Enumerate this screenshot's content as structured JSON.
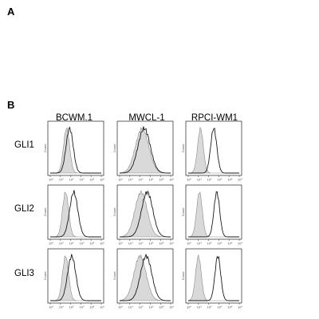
{
  "figure": {
    "panel_a_label": "A",
    "panel_b_label": "B",
    "columns": [
      "BCWM.1",
      "MWCL-1",
      "RPCI-WM1"
    ],
    "rows": [
      "GLI1",
      "GLI2",
      "GLI3"
    ],
    "y_axis_label": "Count",
    "x_tick_labels": [
      "10⁰",
      "10¹",
      "10²",
      "10³",
      "10⁴",
      "10⁵"
    ]
  },
  "panels": [
    {
      "row": "GLI1",
      "col": "BCWM.1",
      "shaded": {
        "peak": 1.6,
        "width": 0.3
      },
      "line": {
        "peak": 1.9,
        "width": 0.35
      }
    },
    {
      "row": "GLI1",
      "col": "MWCL-1",
      "shaded": {
        "peak": 2.2,
        "width": 0.65
      },
      "line": {
        "peak": 2.4,
        "width": 0.6
      }
    },
    {
      "row": "GLI1",
      "col": "RPCI-WM1",
      "shaded": {
        "peak": 1.2,
        "width": 0.28
      },
      "line": {
        "peak": 2.5,
        "width": 0.3
      }
    },
    {
      "row": "GLI2",
      "col": "BCWM.1",
      "shaded": {
        "peak": 1.5,
        "width": 0.3
      },
      "line": {
        "peak": 2.3,
        "width": 0.4
      }
    },
    {
      "row": "GLI2",
      "col": "MWCL-1",
      "shaded": {
        "peak": 2.1,
        "width": 0.6
      },
      "line": {
        "peak": 2.7,
        "width": 0.55
      }
    },
    {
      "row": "GLI2",
      "col": "RPCI-WM1",
      "shaded": {
        "peak": 1.1,
        "width": 0.28
      },
      "line": {
        "peak": 2.8,
        "width": 0.28
      }
    },
    {
      "row": "GLI3",
      "col": "BCWM.1",
      "shaded": {
        "peak": 1.5,
        "width": 0.3
      },
      "line": {
        "peak": 2.1,
        "width": 0.4
      }
    },
    {
      "row": "GLI3",
      "col": "MWCL-1",
      "shaded": {
        "peak": 2.0,
        "width": 0.6
      },
      "line": {
        "peak": 2.6,
        "width": 0.55
      }
    },
    {
      "row": "GLI3",
      "col": "RPCI-WM1",
      "shaded": {
        "peak": 1.0,
        "width": 0.28
      },
      "line": {
        "peak": 2.9,
        "width": 0.28
      }
    }
  ]
}
